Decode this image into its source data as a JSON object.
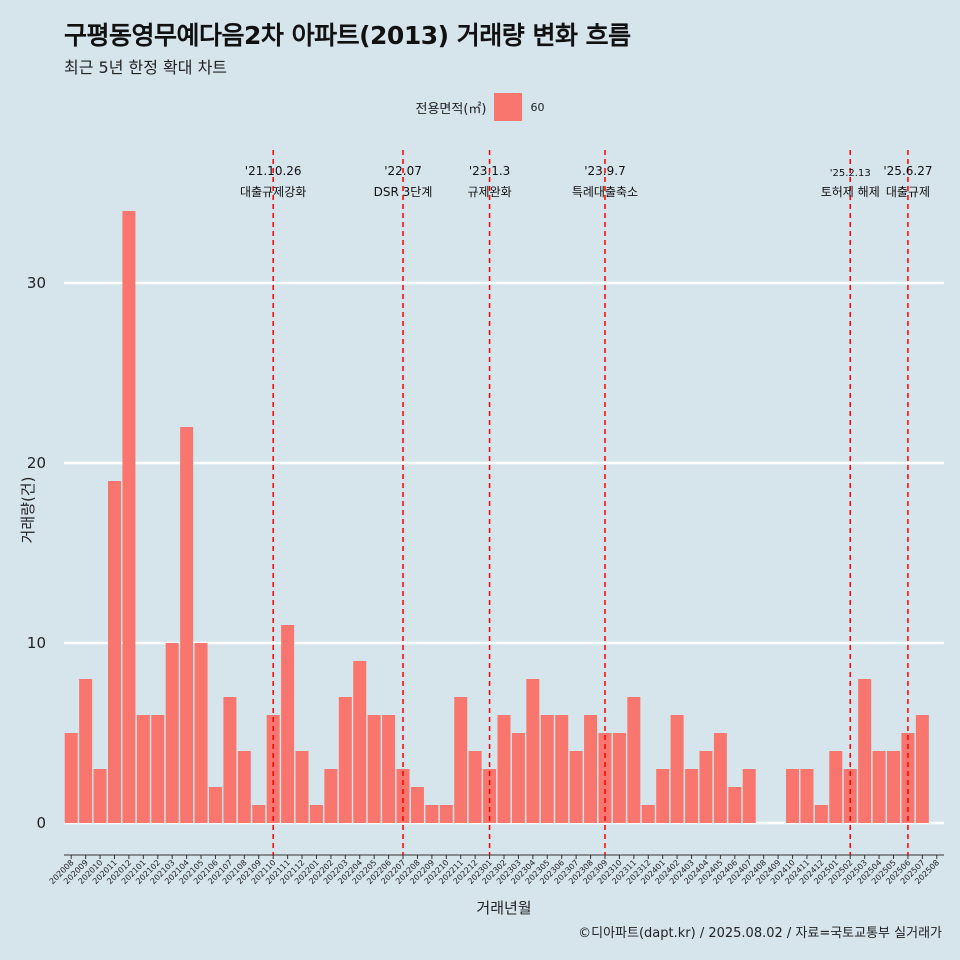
{
  "header": {
    "title": "구평동영무예다음2차 아파트(2013) 거래량 변화 흐름",
    "subtitle": "최근 5년 한정 확대 차트"
  },
  "legend": {
    "title": "전용면적(㎡)",
    "label": "60",
    "color": "#f8766d"
  },
  "caption": "©디아파트(dapt.kr) / 2025.08.02 / 자료=국토교통부 실거래가",
  "chart_data": {
    "type": "bar",
    "xlabel": "거래년월",
    "ylabel": "거래량(건)",
    "ylim": [
      0,
      34
    ],
    "yticks": [
      0,
      10,
      20,
      30
    ],
    "grid": "horizontal",
    "legend_placement": "top",
    "bar_color": "#f8766d",
    "categories": [
      "202008",
      "202009",
      "202010",
      "202011",
      "202012",
      "202101",
      "202102",
      "202103",
      "202104",
      "202105",
      "202106",
      "202107",
      "202108",
      "202109",
      "202110",
      "202111",
      "202112",
      "202201",
      "202202",
      "202203",
      "202204",
      "202205",
      "202206",
      "202207",
      "202208",
      "202209",
      "202210",
      "202211",
      "202212",
      "202301",
      "202302",
      "202303",
      "202304",
      "202305",
      "202306",
      "202307",
      "202308",
      "202309",
      "202310",
      "202311",
      "202312",
      "202401",
      "202402",
      "202403",
      "202404",
      "202405",
      "202406",
      "202407",
      "202408",
      "202409",
      "202410",
      "202411",
      "202412",
      "202501",
      "202502",
      "202503",
      "202504",
      "202505",
      "202506",
      "202507",
      "202508"
    ],
    "series": [
      {
        "name": "60",
        "values": [
          5,
          8,
          3,
          19,
          34,
          6,
          6,
          10,
          22,
          10,
          2,
          7,
          4,
          1,
          6,
          11,
          4,
          1,
          3,
          7,
          9,
          6,
          6,
          3,
          2,
          1,
          1,
          7,
          4,
          3,
          6,
          5,
          8,
          6,
          6,
          4,
          6,
          5,
          5,
          7,
          1,
          3,
          6,
          3,
          4,
          5,
          2,
          3,
          null,
          null,
          3,
          3,
          1,
          4,
          3,
          8,
          4,
          4,
          5,
          6,
          null
        ]
      }
    ],
    "annotations": [
      {
        "date_label": "'21.10.26",
        "text": "대출규제강화",
        "at": "202110"
      },
      {
        "date_label": "'22.07",
        "text": "DSR 3단계",
        "at": "202207"
      },
      {
        "date_label": "'23.1.3",
        "text": "규제완화",
        "at": "202301"
      },
      {
        "date_label": "'23.9.7",
        "text": "특례대출축소",
        "at": "202309"
      },
      {
        "date_label": "'25.2.13",
        "text": "토허제 해제",
        "at": "202502"
      },
      {
        "date_label": "'25.6.27",
        "text": "대출규제",
        "at": "202506"
      }
    ]
  }
}
